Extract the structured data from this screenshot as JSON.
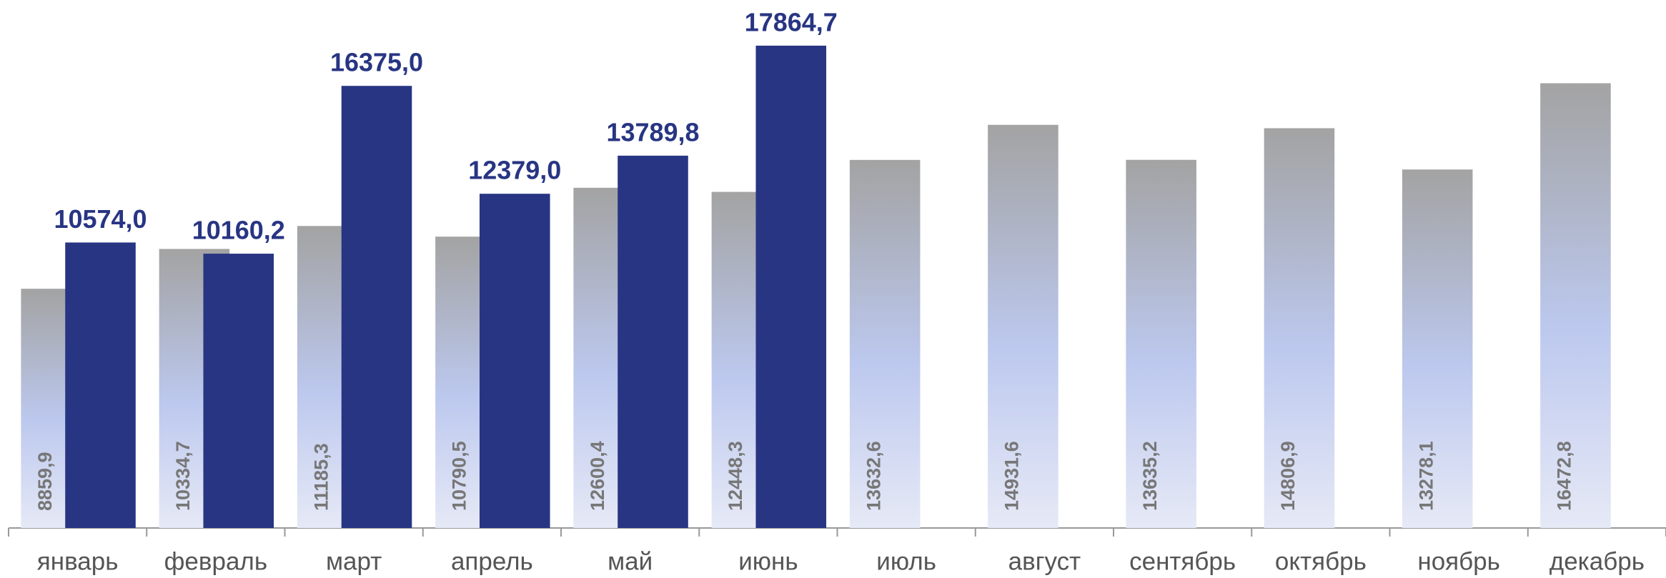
{
  "chart_data": {
    "type": "bar",
    "categories": [
      "январь",
      "февраль",
      "март",
      "апрель",
      "май",
      "июнь",
      "июль",
      "август",
      "сентябрь",
      "октябрь",
      "ноябрь",
      "декабрь"
    ],
    "series": [
      {
        "color": "#a3a3a3",
        "values": [
          8859.9,
          10334.7,
          11185.3,
          10790.5,
          12600.4,
          12448.3,
          13632.6,
          14931.6,
          13635.2,
          14806.9,
          13278.1,
          16472.8
        ],
        "value_labels": [
          "8859,9",
          "10334,7",
          "11185,3",
          "10790,5",
          "12600,4",
          "12448,3",
          "13632,6",
          "14931,6",
          "13635,2",
          "14806,9",
          "13278,1",
          "16472,8"
        ]
      },
      {
        "color": "#283583",
        "values": [
          10574.0,
          10160.2,
          16375.0,
          12379.0,
          13789.8,
          17864.7,
          null,
          null,
          null,
          null,
          null,
          null
        ],
        "value_labels": [
          "10574,0",
          "10160,2",
          "16375,0",
          "12379,0",
          "13789,8",
          "17864,7",
          null,
          null,
          null,
          null,
          null,
          null
        ]
      }
    ],
    "ylim": [
      0,
      19000
    ]
  }
}
